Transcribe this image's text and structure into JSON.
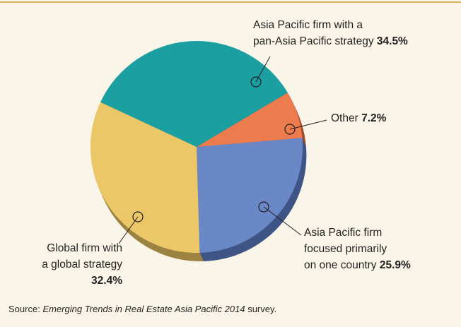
{
  "chart_data": {
    "type": "pie",
    "categories": [
      [
        "Asia Pacific firm with a",
        "pan-Asia Pacific strategy"
      ],
      [
        "Other"
      ],
      [
        "Asia Pacific firm",
        "focused primarily",
        "on one country"
      ],
      [
        "Global firm with",
        "a global strategy"
      ]
    ],
    "values": [
      34.5,
      7.2,
      25.9,
      32.4
    ],
    "value_labels": [
      "34.5%",
      "7.2%",
      "25.9%",
      "32.4%"
    ],
    "colors": [
      "#1c9fa0",
      "#ec7b4d",
      "#6b88c6",
      "#ecc767"
    ],
    "side_colors": [
      "#106c6d",
      "#a04b29",
      "#3f5586",
      "#9c8342"
    ],
    "source": {
      "prefix": "Source:",
      "title": "Emerging Trends in Real Estate Asia Pacific 2014",
      "suffix": "survey."
    }
  }
}
